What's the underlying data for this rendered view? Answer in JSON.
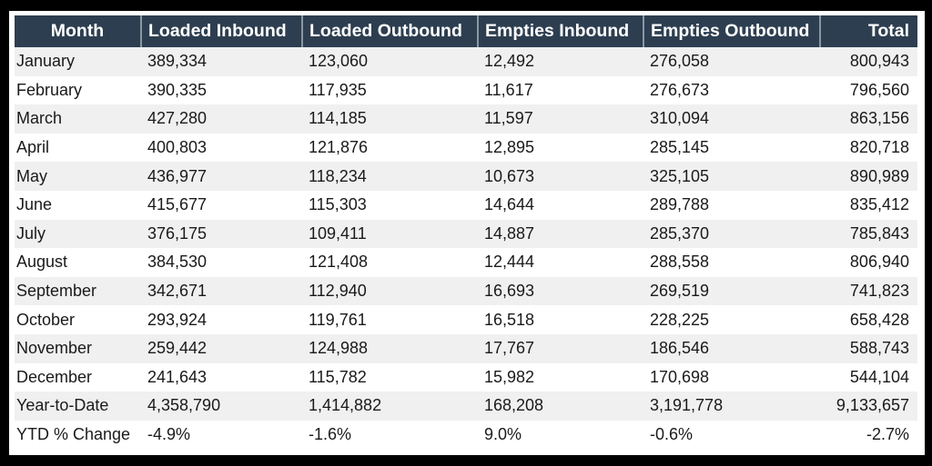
{
  "window": {
    "background": "#000000",
    "panel_background": "#ffffff"
  },
  "table": {
    "columns": [
      {
        "label": "Month",
        "header_align": "center",
        "data_align": "left"
      },
      {
        "label": "Loaded Inbound",
        "header_align": "left",
        "data_align": "left"
      },
      {
        "label": "Loaded Outbound",
        "header_align": "left",
        "data_align": "left"
      },
      {
        "label": "Empties Inbound",
        "header_align": "left",
        "data_align": "left"
      },
      {
        "label": "Empties Outbound",
        "header_align": "left",
        "data_align": "left"
      },
      {
        "label": "Total",
        "header_align": "right",
        "data_align": "right"
      }
    ],
    "rows": [
      [
        "January",
        "389,334",
        "123,060",
        "12,492",
        "276,058",
        "800,943"
      ],
      [
        "February",
        "390,335",
        "117,935",
        "11,617",
        "276,673",
        "796,560"
      ],
      [
        "March",
        "427,280",
        "114,185",
        "11,597",
        "310,094",
        "863,156"
      ],
      [
        "April",
        "400,803",
        "121,876",
        "12,895",
        "285,145",
        "820,718"
      ],
      [
        "May",
        "436,977",
        "118,234",
        "10,673",
        "325,105",
        "890,989"
      ],
      [
        "June",
        "415,677",
        "115,303",
        "14,644",
        "289,788",
        "835,412"
      ],
      [
        "July",
        "376,175",
        "109,411",
        "14,887",
        "285,370",
        "785,843"
      ],
      [
        "August",
        "384,530",
        "121,408",
        "12,444",
        "288,558",
        "806,940"
      ],
      [
        "September",
        "342,671",
        "112,940",
        "16,693",
        "269,519",
        "741,823"
      ],
      [
        "October",
        "293,924",
        "119,761",
        "16,518",
        "228,225",
        "658,428"
      ],
      [
        "November",
        "259,442",
        "124,988",
        "17,767",
        "186,546",
        "588,743"
      ],
      [
        "December",
        "241,643",
        "115,782",
        "15,982",
        "170,698",
        "544,104"
      ],
      [
        "Year-to-Date",
        "4,358,790",
        "1,414,882",
        "168,208",
        "3,191,778",
        "9,133,657"
      ],
      [
        "YTD % Change",
        "-4.9%",
        "-1.6%",
        "9.0%",
        "-0.6%",
        "-2.7%"
      ]
    ],
    "colors": {
      "header_bg": "#2d3e50",
      "header_text": "#ffffff",
      "header_separator": "#8a97a3",
      "row_alt_bg": "#f0f0f0",
      "row_bg": "#ffffff",
      "body_text": "#1a1a1a"
    }
  },
  "chart_data": {
    "type": "table",
    "title": "",
    "columns": [
      "Month",
      "Loaded Inbound",
      "Loaded Outbound",
      "Empties Inbound",
      "Empties Outbound",
      "Total"
    ],
    "row_labels": [
      "January",
      "February",
      "March",
      "April",
      "May",
      "June",
      "July",
      "August",
      "September",
      "October",
      "November",
      "December",
      "Year-to-Date",
      "YTD % Change"
    ],
    "series": [
      {
        "name": "Loaded Inbound",
        "monthly": [
          389334,
          390335,
          427280,
          400803,
          436977,
          415677,
          376175,
          384530,
          342671,
          293924,
          259442,
          241643
        ],
        "year_to_date": 4358790,
        "ytd_pct_change": "-4.9%"
      },
      {
        "name": "Loaded Outbound",
        "monthly": [
          123060,
          117935,
          114185,
          121876,
          118234,
          115303,
          109411,
          121408,
          112940,
          119761,
          124988,
          115782
        ],
        "year_to_date": 1414882,
        "ytd_pct_change": "-1.6%"
      },
      {
        "name": "Empties Inbound",
        "monthly": [
          12492,
          11617,
          11597,
          12895,
          10673,
          14644,
          14887,
          12444,
          16693,
          16518,
          17767,
          15982
        ],
        "year_to_date": 168208,
        "ytd_pct_change": "9.0%"
      },
      {
        "name": "Empties Outbound",
        "monthly": [
          276058,
          276673,
          310094,
          285145,
          325105,
          289788,
          285370,
          288558,
          269519,
          228225,
          186546,
          170698
        ],
        "year_to_date": 3191778,
        "ytd_pct_change": "-0.6%"
      },
      {
        "name": "Total",
        "monthly": [
          800943,
          796560,
          863156,
          820718,
          890989,
          835412,
          785843,
          806940,
          741823,
          658428,
          588743,
          544104
        ],
        "year_to_date": 9133657,
        "ytd_pct_change": "-2.7%"
      }
    ],
    "layout": {
      "alternating_row_shading": true,
      "header_style": "dark-navy",
      "grid": "off"
    }
  }
}
